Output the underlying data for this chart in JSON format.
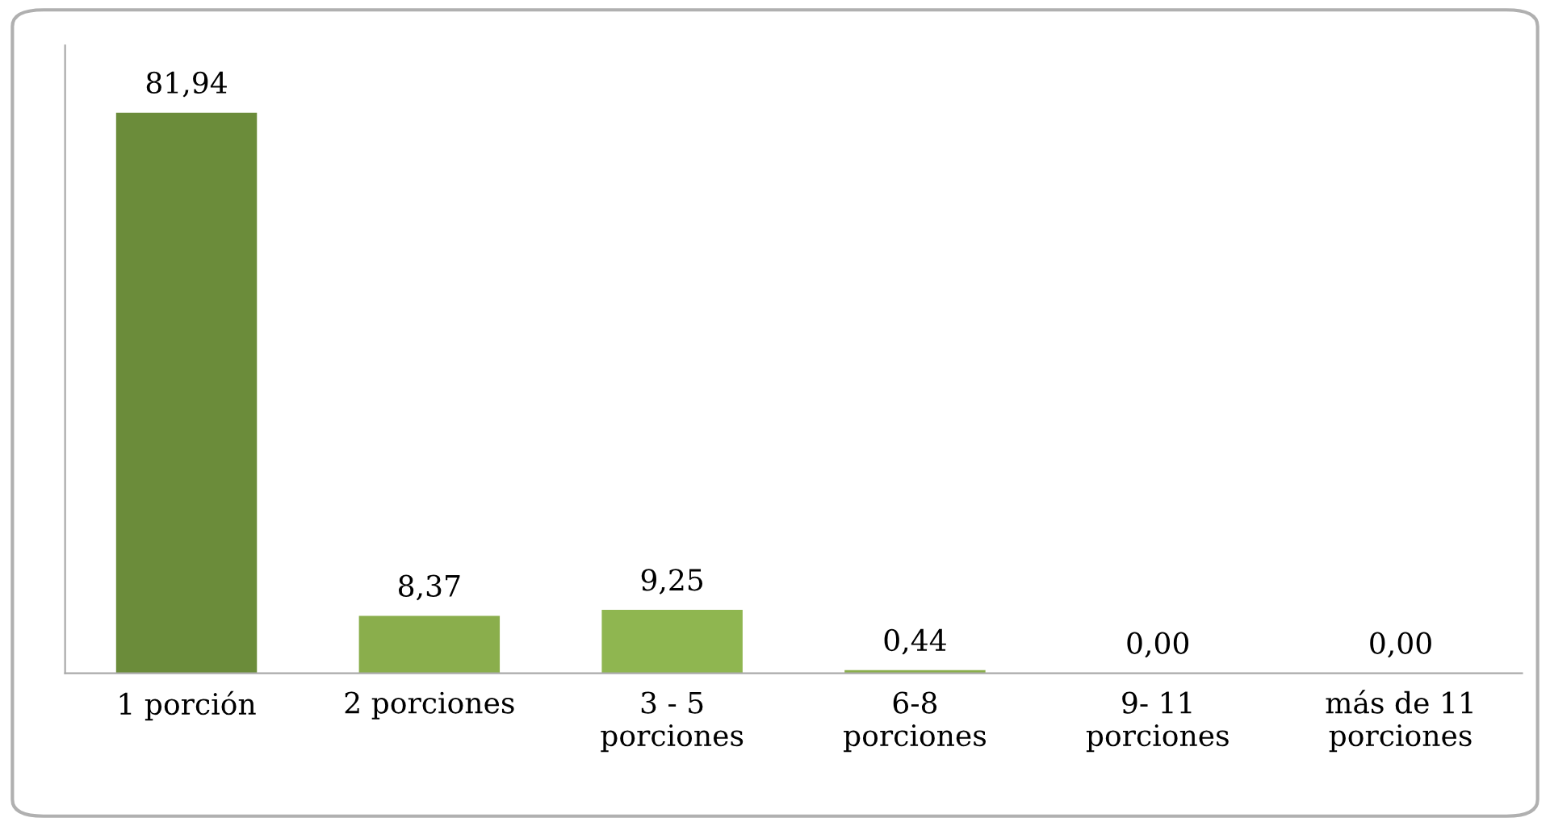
{
  "chart_data": {
    "type": "bar",
    "categories": [
      "1 porción",
      "2 porciones",
      "3 - 5\nporciones",
      "6-8\nporciones",
      "9- 11\nporciones",
      "más de 11\nporciones"
    ],
    "values": [
      81.94,
      8.37,
      9.25,
      0.44,
      0.0,
      0.0
    ],
    "value_labels": [
      "81,94",
      "8,37",
      "9,25",
      "0,44",
      "0,00",
      "0,00"
    ],
    "colors": [
      "#6b8c3a",
      "#8aae4c",
      "#8fb650",
      "#8aae4c",
      "#8aae4c",
      "#8aae4c"
    ],
    "grid": false,
    "legend": false
  }
}
